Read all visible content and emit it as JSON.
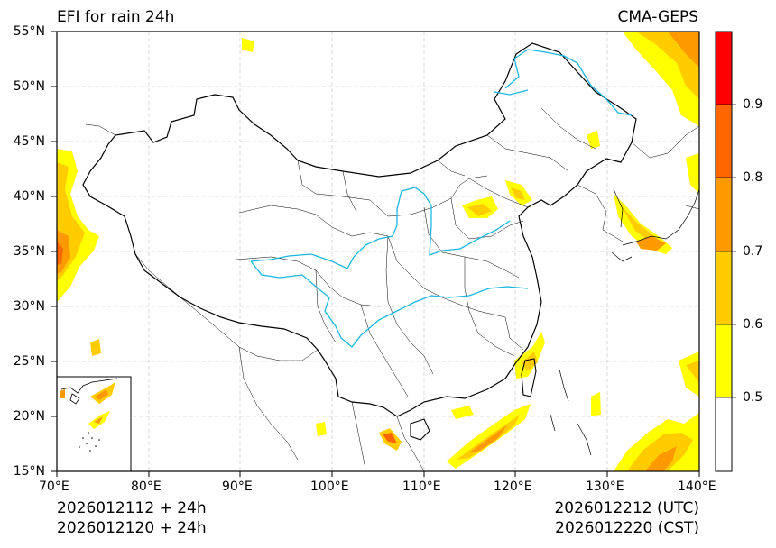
{
  "header": {
    "title_left": "EFI for rain 24h",
    "title_right": "CMA-GEPS"
  },
  "axes": {
    "lat_labels": [
      "55°N",
      "50°N",
      "45°N",
      "40°N",
      "35°N",
      "30°N",
      "25°N",
      "20°N",
      "15°N"
    ],
    "lon_labels": [
      "70°E",
      "80°E",
      "90°E",
      "100°E",
      "110°E",
      "120°E",
      "130°E",
      "140°E"
    ]
  },
  "colorbar": {
    "labels": [
      "0.5",
      "0.6",
      "0.7",
      "0.8",
      "0.9"
    ],
    "colors": [
      "#ffffff",
      "#ffff00",
      "#ffcc00",
      "#ff9900",
      "#ff6600",
      "#ff0000"
    ]
  },
  "footer": {
    "init_utc": "2026012112 + 24h",
    "init_cst": "2026012120 + 24h",
    "valid_utc": "2026012212 (UTC)",
    "valid_cst": "2026012220 (CST)"
  }
}
